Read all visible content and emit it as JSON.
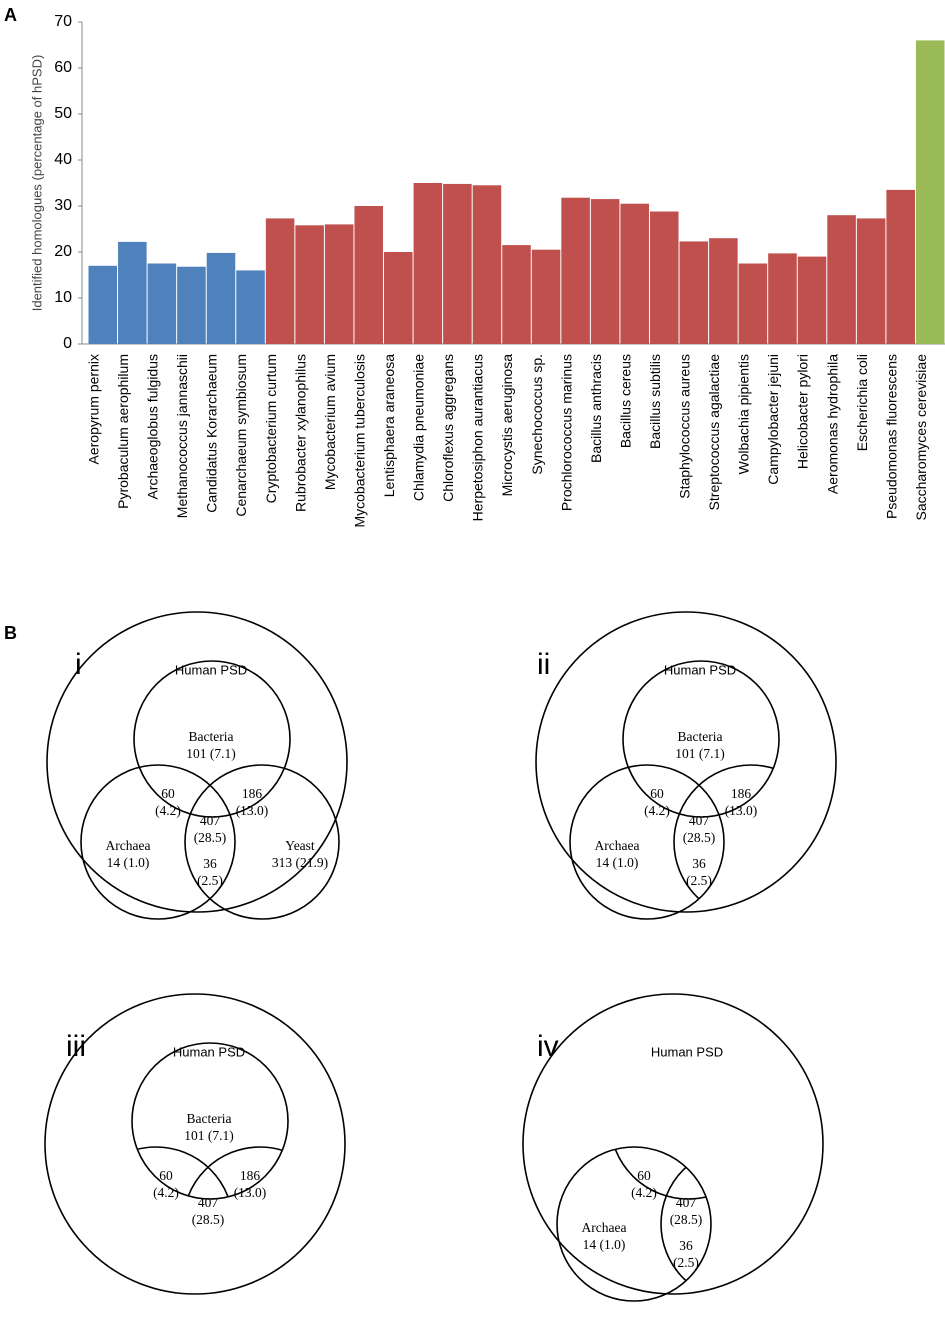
{
  "chart_data": {
    "type": "bar",
    "panel_label": "A",
    "y_label": "Identified homologues (percentage of hPSD)",
    "categories": [
      "Aeropyrum pernix",
      "Pyrobaculum aerophilum",
      "Archaeoglobus fulgidus",
      "Methanococcus jannaschii",
      "Candidatus Korarchaeum",
      "Cenarchaeum symbiosum",
      "Cryptobacterium curtum",
      "Rubrobacter xylanophilus",
      "Mycobacterium avium",
      "Mycobacterium tuberculosis",
      "Lentisphaera araneosa",
      "Chlamydia pneumoniae",
      "Chloroflexus aggregans",
      "Herpetosiphon aurantiacus",
      "Microcystis aeruginosa",
      "Synechococcus sp.",
      "Prochlorococcus marinus",
      "Bacillus anthracis",
      "Bacillus cereus",
      "Bacillus subtilis",
      "Staphylococcus aureus",
      "Streptococcus agalactiae",
      "Wolbachia pipientis",
      "Campylobacter jejuni",
      "Helicobacter pylori",
      "Aeromonas hydrophila",
      "Escherichia coli",
      "Pseudomonas fluorescens",
      "Saccharomyces cerevisiae"
    ],
    "values": [
      17,
      22.2,
      17.5,
      16.8,
      19.8,
      16,
      27.3,
      25.8,
      26,
      30,
      20,
      35,
      34.8,
      34.5,
      21.5,
      20.5,
      31.8,
      31.5,
      30.5,
      28.8,
      22.3,
      23,
      17.5,
      19.7,
      19,
      28,
      27.3,
      33.5,
      66
    ],
    "colors": [
      "#4f81bd",
      "#4f81bd",
      "#4f81bd",
      "#4f81bd",
      "#4f81bd",
      "#4f81bd",
      "#c0504d",
      "#c0504d",
      "#c0504d",
      "#c0504d",
      "#c0504d",
      "#c0504d",
      "#c0504d",
      "#c0504d",
      "#c0504d",
      "#c0504d",
      "#c0504d",
      "#c0504d",
      "#c0504d",
      "#c0504d",
      "#c0504d",
      "#c0504d",
      "#c0504d",
      "#c0504d",
      "#c0504d",
      "#c0504d",
      "#c0504d",
      "#c0504d",
      "#9bbb59"
    ],
    "ylim": [
      0,
      70
    ],
    "yticks": [
      0,
      10,
      20,
      30,
      40,
      50,
      60,
      70
    ],
    "grid": false
  },
  "venn_panel": {
    "panel_label": "B",
    "venns": [
      {
        "label": "i",
        "outer": "Human PSD",
        "regions": [
          [
            "Bacteria",
            "101 (7.1)"
          ],
          [
            "60",
            "(4.2)"
          ],
          [
            "186",
            "(13.0)"
          ],
          [
            "407",
            "(28.5)"
          ],
          [
            "Archaea",
            "14 (1.0)"
          ],
          [
            "36",
            "(2.5)"
          ],
          [
            "Yeast",
            "313 (21.9)"
          ]
        ]
      },
      {
        "label": "ii",
        "outer": "Human PSD",
        "regions": [
          [
            "Bacteria",
            "101 (7.1)"
          ],
          [
            "60",
            "(4.2)"
          ],
          [
            "186",
            "(13.0)"
          ],
          [
            "407",
            "(28.5)"
          ],
          [
            "Archaea",
            "14 (1.0)"
          ],
          [
            "36",
            "(2.5)"
          ]
        ]
      },
      {
        "label": "iii",
        "outer": "Human PSD",
        "regions": [
          [
            "Bacteria",
            "101 (7.1)"
          ],
          [
            "60",
            "(4.2)"
          ],
          [
            "186",
            "(13.0)"
          ],
          [
            "407",
            "(28.5)"
          ]
        ]
      },
      {
        "label": "iv",
        "outer": "Human PSD",
        "regions": [
          [
            "60",
            "(4.2)"
          ],
          [
            "407",
            "(28.5)"
          ],
          [
            "Archaea",
            "14 (1.0)"
          ],
          [
            "36",
            "(2.5)"
          ]
        ]
      }
    ]
  }
}
